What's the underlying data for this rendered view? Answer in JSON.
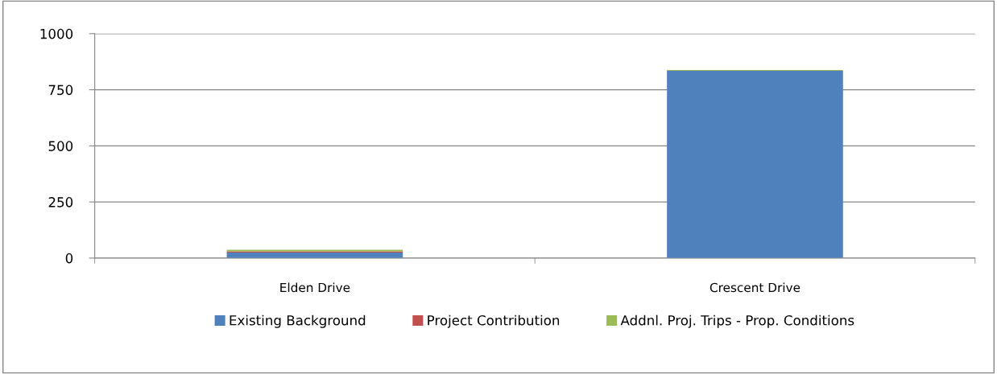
{
  "chart_data": {
    "type": "bar",
    "stacked": true,
    "categories": [
      "Elden Drive",
      "Crescent Drive"
    ],
    "series": [
      {
        "name": "Existing Background",
        "color": "#4f81bd",
        "values": [
          25,
          835
        ]
      },
      {
        "name": "Project Contribution",
        "color": "#c0504d",
        "values": [
          5,
          null
        ]
      },
      {
        "name": "Addnl. Proj. Trips - Prop. Conditions",
        "color": "#9bbb59",
        "values": [
          7,
          3
        ]
      }
    ],
    "ylim": [
      0,
      1000
    ],
    "yticks": [
      0,
      250,
      500,
      750,
      1000
    ],
    "grid": "y",
    "legend": "bottom"
  }
}
